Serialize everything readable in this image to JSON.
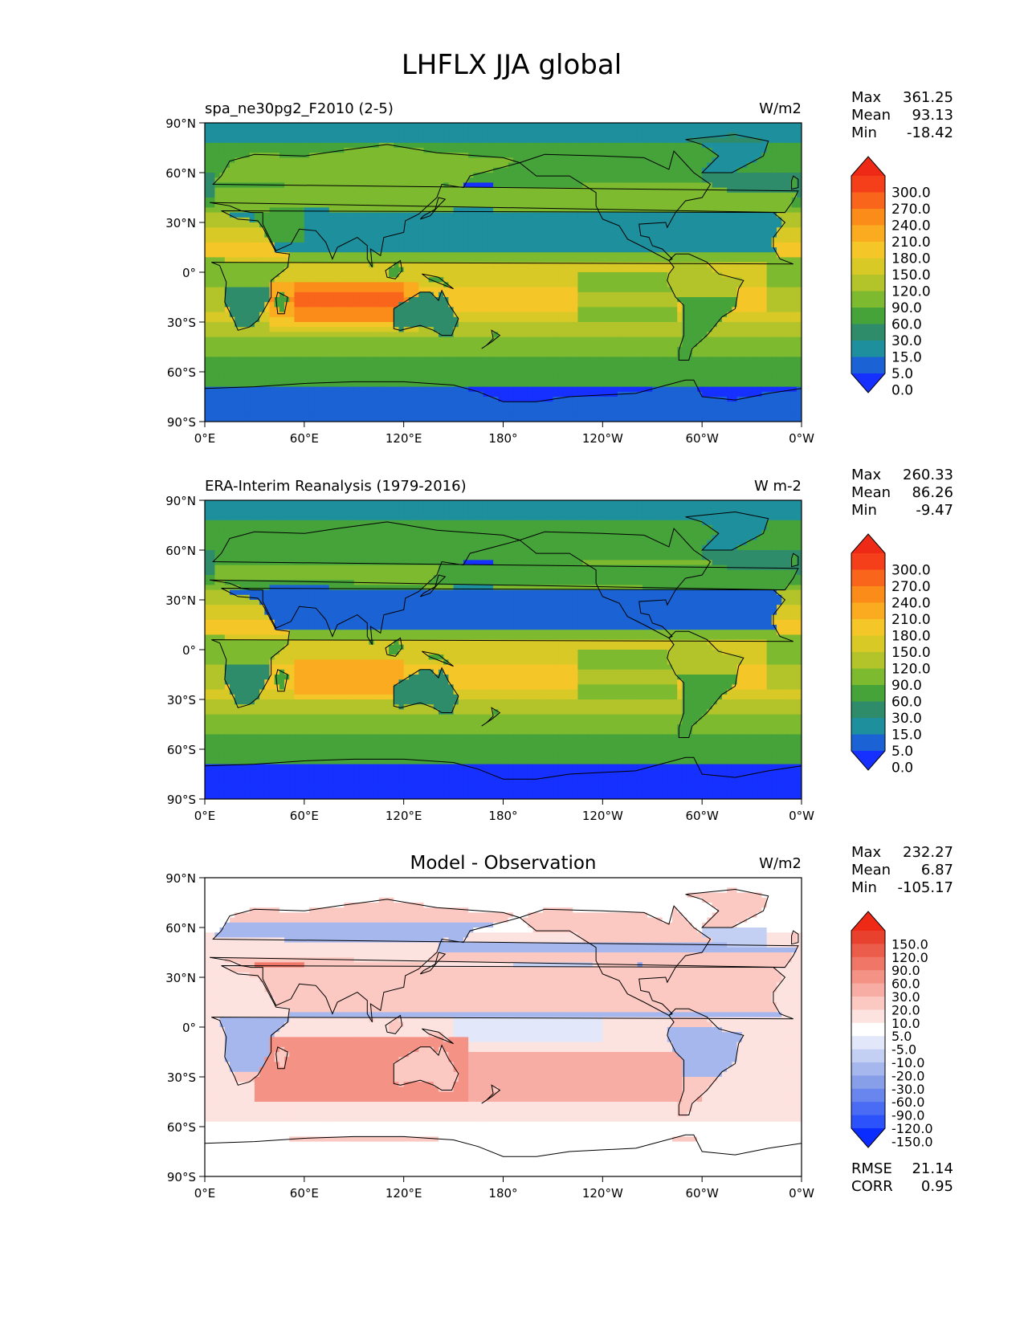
{
  "figure": {
    "title": "LHFLX JJA global"
  },
  "axes": {
    "lat_ticks": [
      "90°N",
      "60°N",
      "30°N",
      "0°",
      "30°S",
      "60°S",
      "90°S"
    ],
    "lon_ticks": [
      "0°E",
      "60°E",
      "120°E",
      "180°",
      "120°W",
      "60°W",
      "0°W"
    ]
  },
  "chart_data": [
    {
      "type": "heatmap",
      "title": "",
      "left_label": "spa_ne30pg2_F2010 (2-5)",
      "units": "W/m2",
      "stats": [
        [
          "Max",
          "361.25"
        ],
        [
          "Mean",
          "93.13"
        ],
        [
          "Min",
          "-18.42"
        ]
      ],
      "extra_stats": [],
      "xlim": [
        0,
        360
      ],
      "ylim": [
        -90,
        90
      ],
      "colorbar": {
        "labels": [
          "300.0",
          "270.0",
          "240.0",
          "210.0",
          "180.0",
          "150.0",
          "120.0",
          "90.0",
          "60.0",
          "30.0",
          "15.0",
          "5.0",
          "0.0"
        ],
        "colors": [
          "#1530ff",
          "#1b63d4",
          "#1e8f9c",
          "#2e8c6a",
          "#45a33a",
          "#7dba2f",
          "#b3c42a",
          "#d8c927",
          "#f4c628",
          "#fbab1f",
          "#fb8c1a",
          "#f8651b",
          "#f43f1a",
          "#ee2a17"
        ]
      },
      "field": "model"
    },
    {
      "type": "heatmap",
      "title": "",
      "left_label": "ERA-Interim Reanalysis (1979-2016)",
      "units": "W m-2",
      "stats": [
        [
          "Max",
          "260.33"
        ],
        [
          "Mean",
          "86.26"
        ],
        [
          "Min",
          "-9.47"
        ]
      ],
      "extra_stats": [],
      "xlim": [
        0,
        360
      ],
      "ylim": [
        -90,
        90
      ],
      "colorbar": {
        "labels": [
          "300.0",
          "270.0",
          "240.0",
          "210.0",
          "180.0",
          "150.0",
          "120.0",
          "90.0",
          "60.0",
          "30.0",
          "15.0",
          "5.0",
          "0.0"
        ],
        "colors": [
          "#1530ff",
          "#1b63d4",
          "#1e8f9c",
          "#2e8c6a",
          "#45a33a",
          "#7dba2f",
          "#b3c42a",
          "#d8c927",
          "#f4c628",
          "#fbab1f",
          "#fb8c1a",
          "#f8651b",
          "#f43f1a",
          "#ee2a17"
        ]
      },
      "field": "obs"
    },
    {
      "type": "heatmap",
      "title": "Model - Observation",
      "left_label": "",
      "units": "W/m2",
      "stats": [
        [
          "Max",
          "232.27"
        ],
        [
          "Mean",
          "6.87"
        ],
        [
          "Min",
          "-105.17"
        ]
      ],
      "extra_stats": [
        [
          "RMSE",
          "21.14"
        ],
        [
          "CORR",
          "0.95"
        ]
      ],
      "xlim": [
        0,
        360
      ],
      "ylim": [
        -90,
        90
      ],
      "colorbar": {
        "labels": [
          "150.0",
          "120.0",
          "90.0",
          "60.0",
          "30.0",
          "20.0",
          "10.0",
          "5.0",
          "-5.0",
          "-10.0",
          "-20.0",
          "-30.0",
          "-60.0",
          "-90.0",
          "-120.0",
          "-150.0"
        ],
        "colors": [
          "#0a2cff",
          "#2c52fb",
          "#4a6cf4",
          "#6886ee",
          "#879fe9",
          "#a6b7ee",
          "#c4cff4",
          "#e2e8fa",
          "#ffffff",
          "#fde3e0",
          "#fbc8c2",
          "#f8ada4",
          "#f49286",
          "#f07768",
          "#ec5c4b",
          "#e8412e",
          "#ee2a17"
        ]
      },
      "field": "diff"
    }
  ]
}
